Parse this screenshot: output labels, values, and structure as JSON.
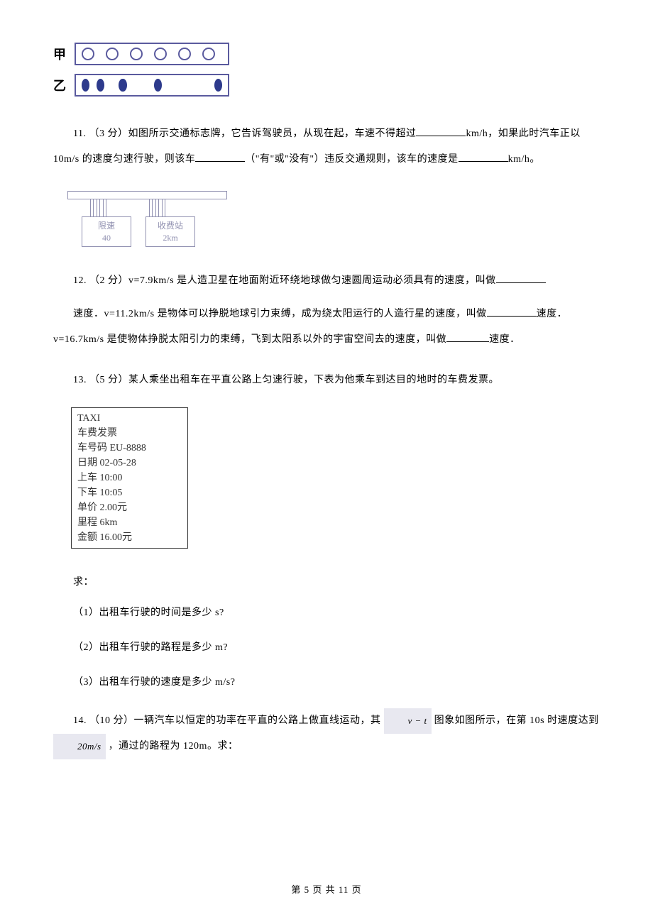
{
  "diagram1": {
    "row1_label": "甲",
    "row2_label": "乙",
    "row1_dots": [
      {
        "type": "open",
        "left_margin": 0
      },
      {
        "type": "open",
        "left_margin": 16
      },
      {
        "type": "open",
        "left_margin": 16
      },
      {
        "type": "open",
        "left_margin": 16
      },
      {
        "type": "open",
        "left_margin": 16
      },
      {
        "type": "open",
        "left_margin": 16
      }
    ],
    "row2_dots": [
      {
        "type": "filled",
        "left_margin": 0
      },
      {
        "type": "filled",
        "left_margin": 10
      },
      {
        "type": "filled",
        "left_margin": 20
      },
      {
        "type": "filled",
        "left_margin": 38
      },
      {
        "type": "filled",
        "left_margin": 74
      }
    ],
    "border_color": "#5a5a9e",
    "open_stroke": "#5a5a9e",
    "fill_color": "#2d3a8c"
  },
  "q11": {
    "text_a": "11. （3 分）如图所示交通标志牌，它告诉驾驶员，从现在起，车速不得超过",
    "text_b": "km/h，如果此时汽车正以 10m/s 的速度匀速行驶，则该车",
    "text_c": "（\"有\"或\"没有\"）违反交通规则，该车的速度是",
    "text_d": "km/h。",
    "sign_left_line1": "限速",
    "sign_left_line2": "40",
    "sign_right_line1": "收费站",
    "sign_right_line2": "2km"
  },
  "q12": {
    "text_a": "12. （2 分）v=7.9km/s 是人造卫星在地面附近环绕地球做匀速圆周运动必须具有的速度，叫做",
    "text_b": "速度．v=11.2km/s 是物体可以挣脱地球引力束缚，成为绕太阳运行的人造行星的速度，叫做",
    "text_c": "速度．v=16.7km/s 是使物体挣脱太阳引力的束缚，飞到太阳系以外的宇宙空间去的速度，叫做",
    "text_d": "速度．"
  },
  "q13": {
    "intro": "13. （5 分）某人乘坐出租车在平直公路上匀速行驶，下表为他乘车到达目的地时的车费发票。",
    "receipt": {
      "l1": "TAXI",
      "l2": "车费发票",
      "l3": "车号码 EU-8888",
      "l4": "日期 02-05-28",
      "l5": "上车 10:00",
      "l6": "下车 10:05",
      "l7": "单价 2.00元",
      "l8": "里程 6km",
      "l9": "金额 16.00元"
    },
    "qiu": "求：",
    "sub1": "（1）出租车行驶的时间是多少 s?",
    "sub2": "（2）出租车行驶的路程是多少 m?",
    "sub3": "（3）出租车行驶的速度是多少 m/s?"
  },
  "q14": {
    "text_a": "14. （10 分）一辆汽车以恒定的功率在平直的公路上做直线运动，其 ",
    "formula1": "v − t",
    "text_b": " 图象如图所示，在第 10s 时速度达到 ",
    "formula2": "20m/s",
    "text_c": " ，通过的路程为 120m。求："
  },
  "footer": {
    "text_a": "第 ",
    "page_num": "5",
    "text_b": " 页 共 ",
    "total_pages": "11",
    "text_c": " 页"
  }
}
